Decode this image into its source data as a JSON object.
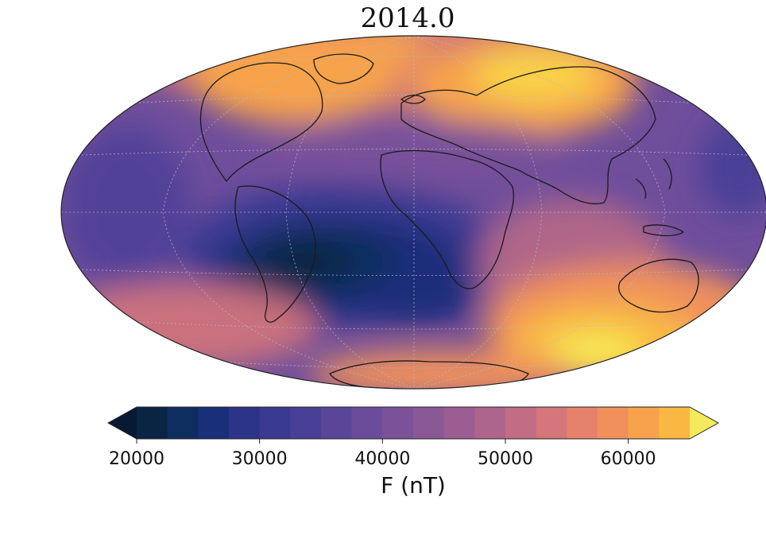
{
  "figure": {
    "title": "2014.0",
    "projection": "hammer",
    "graticule": true
  },
  "map_field": {
    "quantity": "F",
    "unit": "nT",
    "description_values": {
      "south_atlantic_anomaly_min": 22000,
      "north_polar_max": 58000,
      "south_polar_max": 65000
    }
  },
  "colorbar": {
    "label": "F (nT)",
    "orientation": "horizontal",
    "extend": "both",
    "levels": [
      20000,
      22500,
      25000,
      27500,
      30000,
      32500,
      35000,
      37500,
      40000,
      42500,
      45000,
      47500,
      50000,
      52500,
      55000,
      57500,
      60000,
      62500,
      65000
    ],
    "colors": [
      "#0a2543",
      "#0d2e5f",
      "#1a2f7a",
      "#2b3488",
      "#3a3a92",
      "#4a3f97",
      "#5a4699",
      "#6a4c9a",
      "#7b5199",
      "#8b5896",
      "#9c5e92",
      "#ad658c",
      "#c16d84",
      "#d4767a",
      "#e5826c",
      "#f0915c",
      "#f7a34c",
      "#fab843",
      "#f9d048",
      "#f5e654"
    ],
    "under_color": "#071a33",
    "over_color": "#f3ea5d",
    "tick_labels": [
      "20000",
      "30000",
      "40000",
      "50000",
      "60000"
    ],
    "tick_values": [
      20000,
      30000,
      40000,
      50000,
      60000
    ]
  }
}
